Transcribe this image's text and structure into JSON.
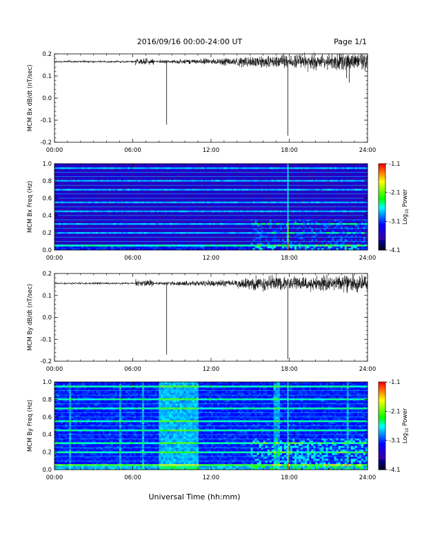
{
  "header": {
    "title": "2016/09/16  00:00-24:00 UT",
    "page": "Page 1/1"
  },
  "xlabel": "Universal Time (hh:mm)",
  "x_ticks": [
    "00:00",
    "06:00",
    "12:00",
    "18:00",
    "24:00"
  ],
  "colorbar": {
    "label_prefix": "Log",
    "label_sub": "10",
    "label_suffix": " Power",
    "ticks": [
      "-1.1",
      "-2.1",
      "-3.1",
      "-4.1"
    ],
    "range": [
      -4.1,
      -1.1
    ]
  },
  "chart_data": [
    {
      "type": "line",
      "id": "bx_dbdt",
      "ylabel": "MCM Bx dB/dt (nT/sec)",
      "ylim": [
        -0.2,
        0.2
      ],
      "y_ticks": [
        "0.2",
        "0.1",
        "0.0",
        "-0.1",
        "-0.2"
      ],
      "x_range_hours": [
        0,
        24
      ],
      "baseline": 0.165,
      "spikes": [
        {
          "hour": 8.6,
          "min": -0.12
        },
        {
          "hour": 17.9,
          "min": -0.17
        },
        {
          "hour": 22.4,
          "min": 0.09
        },
        {
          "hour": 22.6,
          "min": 0.07
        }
      ],
      "series_color": "#000000"
    },
    {
      "type": "heatmap",
      "id": "bx_spec",
      "ylabel": "MCM Bx Freq (Hz)",
      "ylim": [
        0.0,
        1.0
      ],
      "y_ticks": [
        "1.0",
        "0.8",
        "0.6",
        "0.4",
        "0.2",
        "0.0"
      ],
      "x_range_hours": [
        0,
        24
      ],
      "power_range": [
        -4.1,
        -1.1
      ],
      "broadband_hour": 17.9
    },
    {
      "type": "line",
      "id": "by_dbdt",
      "ylabel": "MCM By dB/dt (nT/sec)",
      "ylim": [
        -0.2,
        0.2
      ],
      "y_ticks": [
        "0.2",
        "0.1",
        "0.0",
        "-0.1",
        "-0.2"
      ],
      "x_range_hours": [
        0,
        24
      ],
      "baseline": 0.155,
      "spikes": [
        {
          "hour": 8.6,
          "min": -0.17
        },
        {
          "hour": 17.9,
          "min": -0.19
        }
      ],
      "series_color": "#000000"
    },
    {
      "type": "heatmap",
      "id": "by_spec",
      "ylabel": "MCM By Freq (Hz)",
      "ylim": [
        0.0,
        1.0
      ],
      "y_ticks": [
        "1.0",
        "0.8",
        "0.6",
        "0.4",
        "0.2",
        "0.0"
      ],
      "x_range_hours": [
        0,
        24
      ],
      "power_range": [
        -4.1,
        -1.1
      ],
      "broadband_hour": 17.9
    }
  ]
}
